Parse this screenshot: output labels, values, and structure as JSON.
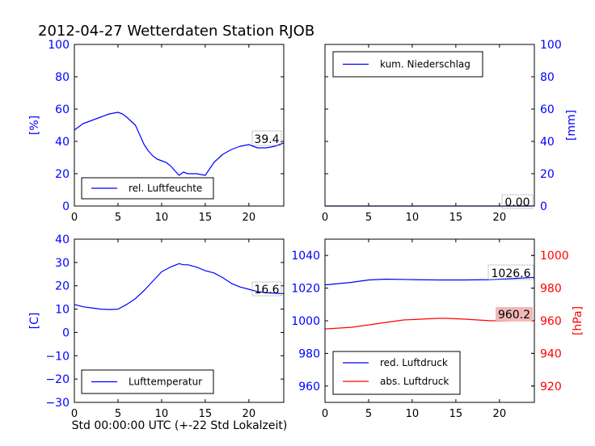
{
  "title": "2012-04-27 Wetterdaten Station RJOB",
  "xlabel": "Std 00:00:00 UTC (+-22 Std Lokalzeit)",
  "colors": {
    "blue": "#0000ff",
    "red": "#ff0000",
    "box_fill": "#f2b8b8",
    "axis": "#000000"
  },
  "chart_data": [
    {
      "panel": "humidity",
      "type": "line",
      "ylabel": "[%]",
      "xlim": [
        0,
        24
      ],
      "ylim": [
        0,
        100
      ],
      "xticks": [
        "0",
        "5",
        "10",
        "15",
        "20"
      ],
      "yticks": [
        "0",
        "20",
        "40",
        "60",
        "80",
        "100"
      ],
      "legend_position": "lower-left",
      "series": [
        {
          "name": "rel. Luftfeuchte",
          "color": "#0000ff",
          "x": [
            0,
            1,
            2,
            3,
            4,
            5,
            5.5,
            6,
            7,
            7.5,
            8,
            8.5,
            9,
            9.5,
            10,
            10.5,
            11,
            11.5,
            12,
            12.5,
            13,
            14,
            15,
            15.5,
            16,
            17,
            18,
            19,
            20,
            21,
            22,
            23,
            24
          ],
          "y": [
            47,
            51,
            53,
            55,
            57,
            58,
            57,
            55,
            50,
            44,
            38,
            34,
            31,
            29,
            28,
            27,
            25,
            22,
            19,
            21,
            20,
            20,
            19,
            23,
            27,
            32,
            35,
            37,
            38,
            36,
            36,
            37,
            39
          ]
        }
      ],
      "last_value_label": "39.4",
      "last_value": 39.4
    },
    {
      "panel": "precipitation",
      "type": "line",
      "ylabel": "[mm]",
      "xlim": [
        0,
        24
      ],
      "ylim": [
        0,
        100
      ],
      "xticks": [
        "0",
        "5",
        "10",
        "15",
        "20"
      ],
      "yticks": [
        "0",
        "20",
        "40",
        "60",
        "80",
        "100"
      ],
      "yaxis_side": "right",
      "legend_position": "upper-left",
      "series": [
        {
          "name": "kum. Niederschlag",
          "color": "#0000ff",
          "x": [
            0,
            24
          ],
          "y": [
            0,
            0
          ]
        }
      ],
      "last_value_label": "0.00",
      "last_value": 0
    },
    {
      "panel": "temperature",
      "type": "line",
      "ylabel": "[C]",
      "xlim": [
        0,
        24
      ],
      "ylim": [
        -30,
        40
      ],
      "xticks": [
        "0",
        "5",
        "10",
        "15",
        "20"
      ],
      "yticks": [
        "−30",
        "−20",
        "−10",
        "0",
        "10",
        "20",
        "30",
        "40"
      ],
      "legend_position": "lower-left",
      "series": [
        {
          "name": "Lufttemperatur",
          "color": "#0000ff",
          "x": [
            0,
            1,
            2,
            3,
            4,
            5,
            6,
            7,
            8,
            9,
            10,
            11,
            12,
            12.5,
            13,
            14,
            15,
            16,
            17,
            18,
            19,
            20,
            21,
            22,
            23,
            24
          ],
          "y": [
            12,
            11,
            10.5,
            10,
            9.8,
            10,
            12,
            14.5,
            18,
            22,
            26,
            28,
            29.5,
            29,
            29,
            28,
            26.5,
            25.5,
            23.5,
            21,
            19.5,
            18.5,
            17.5,
            17,
            16.8,
            16.6
          ]
        }
      ],
      "last_value_label": "16.6",
      "last_value": 16.6
    },
    {
      "panel": "pressure",
      "type": "line",
      "xlim": [
        0,
        24
      ],
      "ylim_left": [
        950,
        1050
      ],
      "ylim_right": [
        910,
        1010
      ],
      "ylabel_right": "[hPa]",
      "xticks": [
        "0",
        "5",
        "10",
        "15",
        "20"
      ],
      "yticks_left": [
        "960",
        "980",
        "1000",
        "1020",
        "1040"
      ],
      "yticks_right": [
        "920",
        "940",
        "960",
        "980",
        "1000"
      ],
      "legend_position": "lower-left",
      "series": [
        {
          "name": "red. Luftdruck",
          "color": "#0000ff",
          "axis": "left",
          "x": [
            0,
            3,
            5,
            7,
            10,
            13,
            16,
            19,
            22,
            24
          ],
          "y": [
            1022,
            1023.5,
            1025,
            1025.5,
            1025.2,
            1025,
            1025,
            1025.2,
            1026,
            1026.6
          ]
        },
        {
          "name": "abs. Luftdruck",
          "color": "#ff0000",
          "axis": "right",
          "x": [
            0,
            3,
            5,
            7,
            9,
            11,
            13,
            14,
            16,
            19,
            22,
            24
          ],
          "y": [
            955,
            956,
            957.5,
            959,
            960.5,
            961,
            961.5,
            961.5,
            961,
            960,
            960.2,
            960.2
          ]
        }
      ],
      "last_value_label": "1026.6",
      "last_value": 1026.6,
      "last_value_label_2": "960.2",
      "last_value_2": 960.2
    }
  ]
}
